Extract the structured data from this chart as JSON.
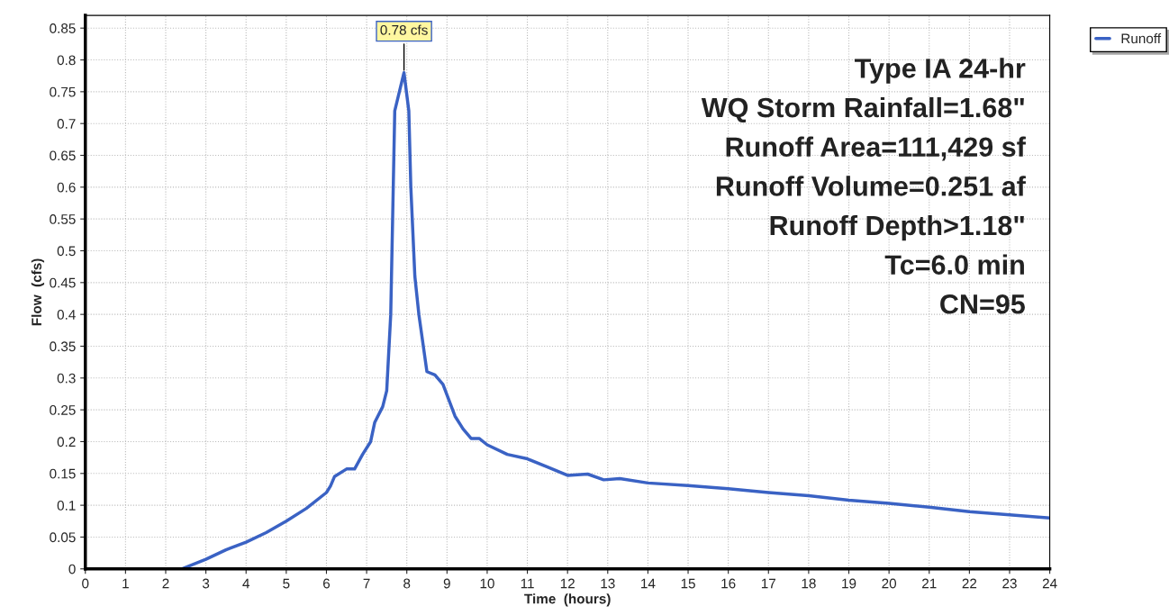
{
  "chart_data": {
    "type": "line",
    "xlabel": "Time  (hours)",
    "ylabel": "Flow  (cfs)",
    "xlim": [
      0,
      24
    ],
    "xticks": [
      0,
      1,
      2,
      3,
      4,
      5,
      6,
      7,
      8,
      9,
      10,
      11,
      12,
      13,
      14,
      15,
      16,
      17,
      18,
      19,
      20,
      21,
      22,
      23,
      24
    ],
    "ylim": [
      0,
      0.87
    ],
    "yticks": [
      0,
      0.05,
      0.1,
      0.15,
      0.2,
      0.25,
      0.3,
      0.35,
      0.4,
      0.45,
      0.5,
      0.55,
      0.6,
      0.65,
      0.7,
      0.75,
      0.8,
      0.85
    ],
    "grid": true,
    "legend": "top right",
    "series": [
      {
        "name": "Runoff",
        "color": "#3a62c4",
        "x": [
          0,
          2.4,
          3,
          3.5,
          4,
          4.5,
          5,
          5.5,
          6,
          6.1,
          6.2,
          6.5,
          6.7,
          6.9,
          7.1,
          7.2,
          7.4,
          7.5,
          7.6,
          7.7,
          7.93,
          8.05,
          8.1,
          8.2,
          8.3,
          8.5,
          8.7,
          8.9,
          9.2,
          9.4,
          9.6,
          9.8,
          10,
          10.5,
          11,
          11.5,
          12,
          12.5,
          12.9,
          13.3,
          14,
          15,
          16,
          17,
          18,
          19,
          20,
          21,
          22,
          23,
          24
        ],
        "values": [
          0,
          0,
          0.015,
          0.03,
          0.042,
          0.057,
          0.075,
          0.095,
          0.12,
          0.13,
          0.145,
          0.157,
          0.157,
          0.18,
          0.2,
          0.23,
          0.255,
          0.28,
          0.4,
          0.72,
          0.78,
          0.72,
          0.6,
          0.46,
          0.4,
          0.31,
          0.305,
          0.29,
          0.24,
          0.22,
          0.205,
          0.205,
          0.195,
          0.18,
          0.173,
          0.16,
          0.147,
          0.149,
          0.14,
          0.142,
          0.135,
          0.131,
          0.126,
          0.12,
          0.115,
          0.108,
          0.103,
          0.097,
          0.09,
          0.085,
          0.08
        ]
      }
    ],
    "annotations": [
      {
        "text": "0.78 cfs",
        "x": 7.93,
        "y": 0.78
      },
      "Type IA 24-hr",
      "WQ Storm Rainfall=1.68\"",
      "Runoff Area=111,429 sf",
      "Runoff Volume=0.251 af",
      "Runoff Depth>1.18\"",
      "Tc=6.0 min",
      "CN=95"
    ]
  }
}
